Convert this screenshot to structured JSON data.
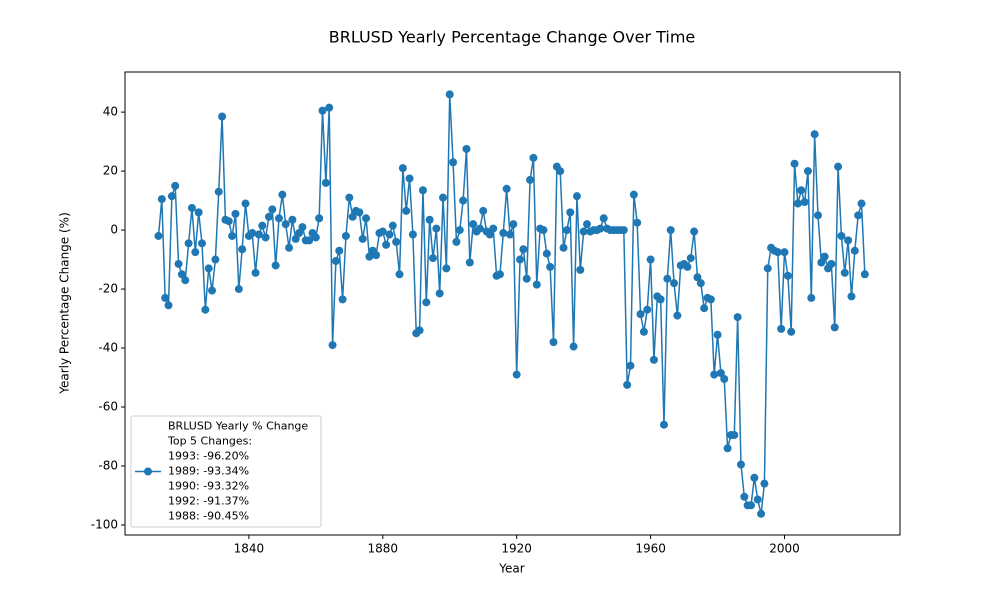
{
  "chart_data": {
    "type": "line",
    "title": "BRLUSD Yearly Percentage Change Over Time",
    "xlabel": "Year",
    "ylabel": "Yearly Percentage Change (%)",
    "x": [
      1813,
      1814,
      1815,
      1816,
      1817,
      1818,
      1819,
      1820,
      1821,
      1822,
      1823,
      1824,
      1825,
      1826,
      1827,
      1828,
      1829,
      1830,
      1831,
      1832,
      1833,
      1834,
      1835,
      1836,
      1837,
      1838,
      1839,
      1840,
      1841,
      1842,
      1843,
      1844,
      1845,
      1846,
      1847,
      1848,
      1849,
      1850,
      1851,
      1852,
      1853,
      1854,
      1855,
      1856,
      1857,
      1858,
      1859,
      1860,
      1861,
      1862,
      1863,
      1864,
      1865,
      1866,
      1867,
      1868,
      1869,
      1870,
      1871,
      1872,
      1873,
      1874,
      1875,
      1876,
      1877,
      1878,
      1879,
      1880,
      1881,
      1882,
      1883,
      1884,
      1885,
      1886,
      1887,
      1888,
      1889,
      1890,
      1891,
      1892,
      1893,
      1894,
      1895,
      1896,
      1897,
      1898,
      1899,
      1900,
      1901,
      1902,
      1903,
      1904,
      1905,
      1906,
      1907,
      1908,
      1909,
      1910,
      1911,
      1912,
      1913,
      1914,
      1915,
      1916,
      1917,
      1918,
      1919,
      1920,
      1921,
      1922,
      1923,
      1924,
      1925,
      1926,
      1927,
      1928,
      1929,
      1930,
      1931,
      1932,
      1933,
      1934,
      1935,
      1936,
      1937,
      1938,
      1939,
      1940,
      1941,
      1942,
      1943,
      1944,
      1945,
      1946,
      1947,
      1948,
      1949,
      1950,
      1951,
      1952,
      1953,
      1954,
      1955,
      1956,
      1957,
      1958,
      1959,
      1960,
      1961,
      1962,
      1963,
      1964,
      1965,
      1966,
      1967,
      1968,
      1969,
      1970,
      1971,
      1972,
      1973,
      1974,
      1975,
      1976,
      1977,
      1978,
      1979,
      1980,
      1981,
      1982,
      1983,
      1984,
      1985,
      1986,
      1987,
      1988,
      1989,
      1990,
      1991,
      1992,
      1993,
      1994,
      1995,
      1996,
      1997,
      1998,
      1999,
      2000,
      2001,
      2002,
      2003,
      2004,
      2005,
      2006,
      2007,
      2008,
      2009,
      2010,
      2011,
      2012,
      2013,
      2014,
      2015,
      2016,
      2017,
      2018,
      2019,
      2020,
      2021,
      2022,
      2023,
      2024
    ],
    "series": [
      {
        "name": "BRLUSD Yearly % Change",
        "color": "#1f77b4",
        "values": [
          -2,
          10.5,
          -23,
          -25.5,
          11.5,
          15,
          -11.5,
          -15,
          -17,
          -4.5,
          7.5,
          -7.5,
          6,
          -4.5,
          -27,
          -13,
          -20.5,
          -10,
          13,
          38.5,
          3.5,
          3,
          -2,
          5.5,
          -20,
          -6.5,
          9,
          -2,
          -1,
          -14.5,
          -1.5,
          1.5,
          -2.5,
          4.5,
          7,
          -12,
          4,
          12,
          2,
          -6,
          3.5,
          -3,
          -1,
          1,
          -3.5,
          -3.5,
          -1,
          -2.5,
          4,
          40.5,
          16,
          41.5,
          -39,
          -10.5,
          -7,
          -23.5,
          -2,
          11,
          4.5,
          6.5,
          6,
          -3,
          4,
          -9,
          -7,
          -8.5,
          -1,
          -0.5,
          -5,
          -1.5,
          1.5,
          -4,
          -15,
          21,
          6.5,
          17.5,
          -1.5,
          -35,
          -34,
          13.5,
          -24.5,
          3.5,
          -9.5,
          0.5,
          -21.5,
          11,
          -13,
          46,
          23,
          -4,
          0,
          10,
          27.5,
          -11,
          2,
          -0.5,
          0.5,
          6.5,
          -0.5,
          -1.5,
          0.5,
          -15.5,
          -15,
          -1,
          14,
          -1.5,
          2,
          -49,
          -10,
          -6.5,
          -16.5,
          17,
          24.5,
          -18.5,
          0.5,
          0,
          -8,
          -12.5,
          -38,
          21.5,
          20,
          -6,
          0,
          6,
          -39.5,
          11.5,
          -13.5,
          -0.5,
          2,
          -0.5,
          0,
          0,
          0.5,
          4,
          0.5,
          0,
          0,
          0,
          0,
          0,
          -52.5,
          -46,
          12,
          2.5,
          -28.5,
          -34.5,
          -27,
          -10,
          -44,
          -22.5,
          -23.5,
          -66,
          -16.5,
          0,
          -18,
          -29,
          -12,
          -11.5,
          -12.5,
          -9.5,
          -0.5,
          -16,
          -18,
          -26.5,
          -23,
          -23.5,
          -49,
          -35.5,
          -48.5,
          -50.5,
          -74,
          -69.5,
          -69.5,
          -29.5,
          -79.5,
          -90.45,
          -93.34,
          -93.32,
          -84,
          -91.37,
          -96.2,
          -86,
          -13,
          -6,
          -7,
          -7.5,
          -33.5,
          -7.5,
          -15.5,
          -34.5,
          22.5,
          9,
          13.5,
          9.5,
          20,
          -23,
          32.5,
          5,
          -11,
          -9,
          -13,
          -11.5,
          -33,
          21.5,
          -2,
          -14.5,
          -3.5,
          -22.5,
          -7,
          5,
          9,
          -15
        ]
      }
    ],
    "legend_notes": [
      "Top 5 Changes:",
      "1993: -96.20%",
      "1989: -93.34%",
      "1990: -93.32%",
      "1992: -91.37%",
      "1988: -90.45%"
    ],
    "legend": "lower left",
    "xlim": [
      1803,
      2034.5
    ],
    "xticks": [
      1840,
      1880,
      1920,
      1960,
      2000
    ],
    "ylim": [
      -103.4,
      53.6
    ],
    "yticks": [
      -100,
      -80,
      -60,
      -40,
      -20,
      0,
      20,
      40
    ],
    "grid": false,
    "marker": "o"
  }
}
